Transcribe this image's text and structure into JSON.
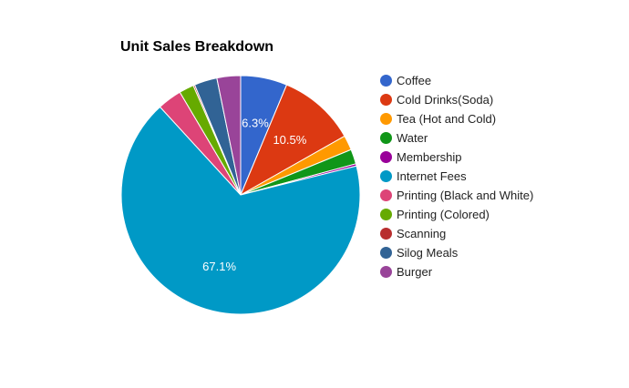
{
  "chart_data": {
    "type": "pie",
    "title": "Unit Sales Breakdown",
    "slices": [
      {
        "label": "Coffee",
        "value": 6.3,
        "color": "#3366cc",
        "data_label": "6.3%"
      },
      {
        "label": "Cold Drinks(Soda)",
        "value": 10.5,
        "color": "#dc3912",
        "data_label": "10.5%"
      },
      {
        "label": "Tea (Hot and Cold)",
        "value": 2.0,
        "color": "#ff9900",
        "data_label": ""
      },
      {
        "label": "Water",
        "value": 2.0,
        "color": "#109618",
        "data_label": ""
      },
      {
        "label": "Membership",
        "value": 0.3,
        "color": "#990099",
        "data_label": ""
      },
      {
        "label": "Internet Fees",
        "value": 67.1,
        "color": "#0099c6",
        "data_label": "67.1%"
      },
      {
        "label": "Printing (Black and White)",
        "value": 3.3,
        "color": "#dd4477",
        "data_label": ""
      },
      {
        "label": "Printing (Colored)",
        "value": 2.0,
        "color": "#66aa00",
        "data_label": ""
      },
      {
        "label": "Scanning",
        "value": 0.2,
        "color": "#b82e2e",
        "data_label": ""
      },
      {
        "label": "Silog Meals",
        "value": 3.1,
        "color": "#316395",
        "data_label": ""
      },
      {
        "label": "Burger",
        "value": 3.2,
        "color": "#994499",
        "data_label": ""
      }
    ],
    "legend_position": "right"
  }
}
